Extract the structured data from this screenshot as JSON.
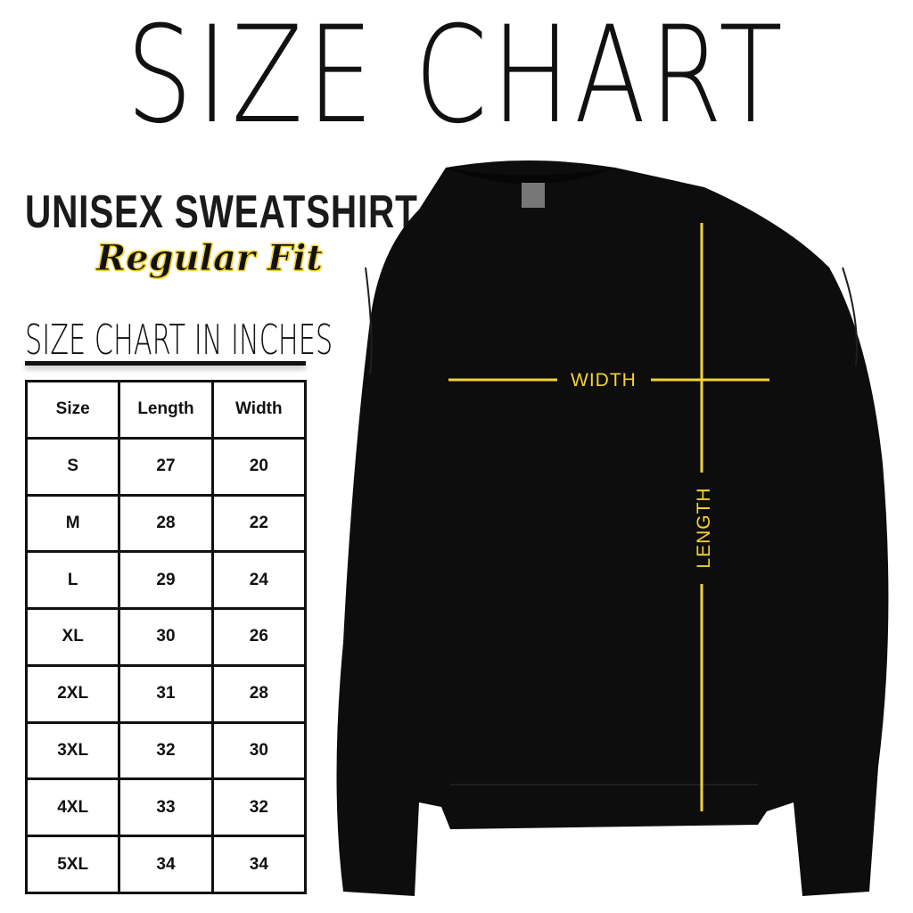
{
  "title": "SIZE CHART",
  "product": "UNISEX SWEATSHIRT",
  "fit": "Regular Fit",
  "table_title": "SIZE CHART IN INCHES",
  "table": {
    "headers": [
      "Size",
      "Length",
      "Width"
    ],
    "rows": [
      [
        "S",
        "27",
        "20"
      ],
      [
        "M",
        "28",
        "22"
      ],
      [
        "L",
        "29",
        "24"
      ],
      [
        "XL",
        "30",
        "26"
      ],
      [
        "2XL",
        "31",
        "28"
      ],
      [
        "3XL",
        "32",
        "30"
      ],
      [
        "4XL",
        "33",
        "32"
      ],
      [
        "5XL",
        "34",
        "34"
      ]
    ]
  },
  "diagram": {
    "width_label": "WIDTH",
    "length_label": "LENGTH"
  },
  "colors": {
    "accent": "#f3d232",
    "garment": "#0d0d0d"
  }
}
